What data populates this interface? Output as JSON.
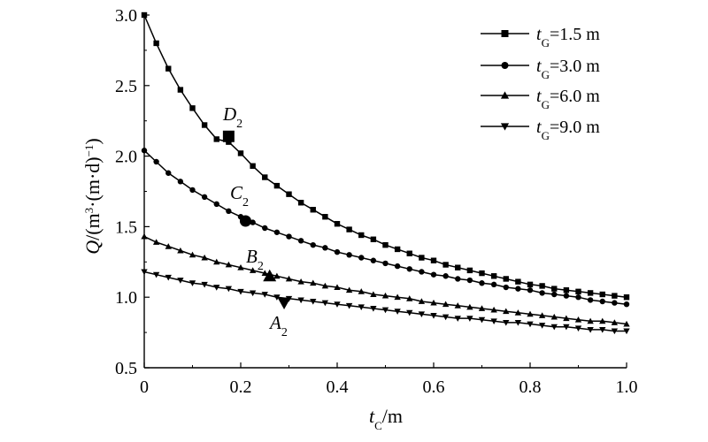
{
  "chart_data": {
    "type": "line",
    "xlabel": {
      "main": "t",
      "sub": "C",
      "unit": "/m"
    },
    "ylabel": {
      "main": "Q",
      "unit": "/(m",
      "sup1": "3",
      "mid": "·(m·d)",
      "sup2": "−1",
      "close": ")"
    },
    "xlim": [
      0,
      1.0
    ],
    "ylim": [
      0.5,
      3.0
    ],
    "xticks": [
      "0",
      "0.2",
      "0.4",
      "0.6",
      "0.8",
      "1.0"
    ],
    "yticks": [
      "0.5",
      "1.0",
      "1.5",
      "2.0",
      "2.5",
      "3.0"
    ],
    "grid": false,
    "legend_position": "top-right",
    "series": [
      {
        "name": "tG=1.5 m",
        "legend": {
          "main": "t",
          "sub": "G",
          "rest": "=1.5 m"
        },
        "marker": "square",
        "x": [
          0,
          0.025,
          0.05,
          0.075,
          0.1,
          0.125,
          0.15,
          0.175,
          0.2,
          0.225,
          0.25,
          0.275,
          0.3,
          0.325,
          0.35,
          0.375,
          0.4,
          0.425,
          0.45,
          0.475,
          0.5,
          0.525,
          0.55,
          0.575,
          0.6,
          0.625,
          0.65,
          0.675,
          0.7,
          0.725,
          0.75,
          0.775,
          0.8,
          0.825,
          0.85,
          0.875,
          0.9,
          0.925,
          0.95,
          0.975,
          1.0
        ],
        "y": [
          3.0,
          2.8,
          2.62,
          2.47,
          2.34,
          2.22,
          2.12,
          2.1,
          2.02,
          1.93,
          1.85,
          1.79,
          1.73,
          1.67,
          1.62,
          1.57,
          1.52,
          1.48,
          1.44,
          1.41,
          1.37,
          1.34,
          1.31,
          1.28,
          1.26,
          1.23,
          1.21,
          1.19,
          1.17,
          1.15,
          1.13,
          1.11,
          1.09,
          1.08,
          1.06,
          1.05,
          1.04,
          1.03,
          1.02,
          1.01,
          1.0
        ]
      },
      {
        "name": "tG=3.0 m",
        "legend": {
          "main": "t",
          "sub": "G",
          "rest": "=3.0 m"
        },
        "marker": "circle",
        "x": [
          0,
          0.025,
          0.05,
          0.075,
          0.1,
          0.125,
          0.15,
          0.175,
          0.2,
          0.225,
          0.25,
          0.275,
          0.3,
          0.325,
          0.35,
          0.375,
          0.4,
          0.425,
          0.45,
          0.475,
          0.5,
          0.525,
          0.55,
          0.575,
          0.6,
          0.625,
          0.65,
          0.675,
          0.7,
          0.725,
          0.75,
          0.775,
          0.8,
          0.825,
          0.85,
          0.875,
          0.9,
          0.925,
          0.95,
          0.975,
          1.0
        ],
        "y": [
          2.04,
          1.96,
          1.88,
          1.82,
          1.76,
          1.71,
          1.66,
          1.61,
          1.57,
          1.53,
          1.49,
          1.46,
          1.43,
          1.4,
          1.37,
          1.35,
          1.32,
          1.3,
          1.28,
          1.26,
          1.24,
          1.22,
          1.2,
          1.18,
          1.16,
          1.15,
          1.13,
          1.12,
          1.1,
          1.09,
          1.07,
          1.06,
          1.05,
          1.03,
          1.02,
          1.01,
          1.0,
          0.98,
          0.97,
          0.96,
          0.95
        ]
      },
      {
        "name": "tG=6.0 m",
        "legend": {
          "main": "t",
          "sub": "G",
          "rest": "=6.0 m"
        },
        "marker": "triangle-up",
        "x": [
          0,
          0.025,
          0.05,
          0.075,
          0.1,
          0.125,
          0.15,
          0.175,
          0.2,
          0.225,
          0.25,
          0.275,
          0.3,
          0.325,
          0.35,
          0.375,
          0.4,
          0.425,
          0.45,
          0.475,
          0.5,
          0.525,
          0.55,
          0.575,
          0.6,
          0.625,
          0.65,
          0.675,
          0.7,
          0.725,
          0.75,
          0.775,
          0.8,
          0.825,
          0.85,
          0.875,
          0.9,
          0.925,
          0.95,
          0.975,
          1.0
        ],
        "y": [
          1.43,
          1.39,
          1.36,
          1.33,
          1.3,
          1.28,
          1.25,
          1.23,
          1.21,
          1.19,
          1.17,
          1.15,
          1.13,
          1.11,
          1.1,
          1.08,
          1.07,
          1.05,
          1.04,
          1.02,
          1.01,
          1.0,
          0.99,
          0.97,
          0.96,
          0.95,
          0.94,
          0.93,
          0.92,
          0.91,
          0.9,
          0.89,
          0.88,
          0.87,
          0.86,
          0.85,
          0.84,
          0.83,
          0.83,
          0.82,
          0.81
        ]
      },
      {
        "name": "tG=9.0 m",
        "legend": {
          "main": "t",
          "sub": "G",
          "rest": "=9.0 m"
        },
        "marker": "triangle-down",
        "x": [
          0,
          0.025,
          0.05,
          0.075,
          0.1,
          0.125,
          0.15,
          0.175,
          0.2,
          0.225,
          0.25,
          0.275,
          0.3,
          0.325,
          0.35,
          0.375,
          0.4,
          0.425,
          0.45,
          0.475,
          0.5,
          0.525,
          0.55,
          0.575,
          0.6,
          0.625,
          0.65,
          0.675,
          0.7,
          0.725,
          0.75,
          0.775,
          0.8,
          0.825,
          0.85,
          0.875,
          0.9,
          0.925,
          0.95,
          0.975,
          1.0
        ],
        "y": [
          1.18,
          1.16,
          1.14,
          1.12,
          1.1,
          1.09,
          1.07,
          1.06,
          1.04,
          1.03,
          1.02,
          1.0,
          0.99,
          0.98,
          0.97,
          0.96,
          0.95,
          0.94,
          0.93,
          0.92,
          0.91,
          0.9,
          0.89,
          0.88,
          0.87,
          0.86,
          0.85,
          0.85,
          0.84,
          0.83,
          0.82,
          0.82,
          0.81,
          0.8,
          0.79,
          0.79,
          0.78,
          0.77,
          0.77,
          0.76,
          0.76
        ]
      }
    ],
    "annotations": [
      {
        "main": "D",
        "sub": "2",
        "x": 0.175,
        "y": 2.14,
        "marker": "square"
      },
      {
        "main": "C",
        "sub": "2",
        "x": 0.21,
        "y": 1.54,
        "marker": "circle"
      },
      {
        "main": "B",
        "sub": "2",
        "x": 0.26,
        "y": 1.15,
        "marker": "triangle-up"
      },
      {
        "main": "A",
        "sub": "2",
        "x": 0.29,
        "y": 0.96,
        "marker": "triangle-down"
      }
    ]
  }
}
